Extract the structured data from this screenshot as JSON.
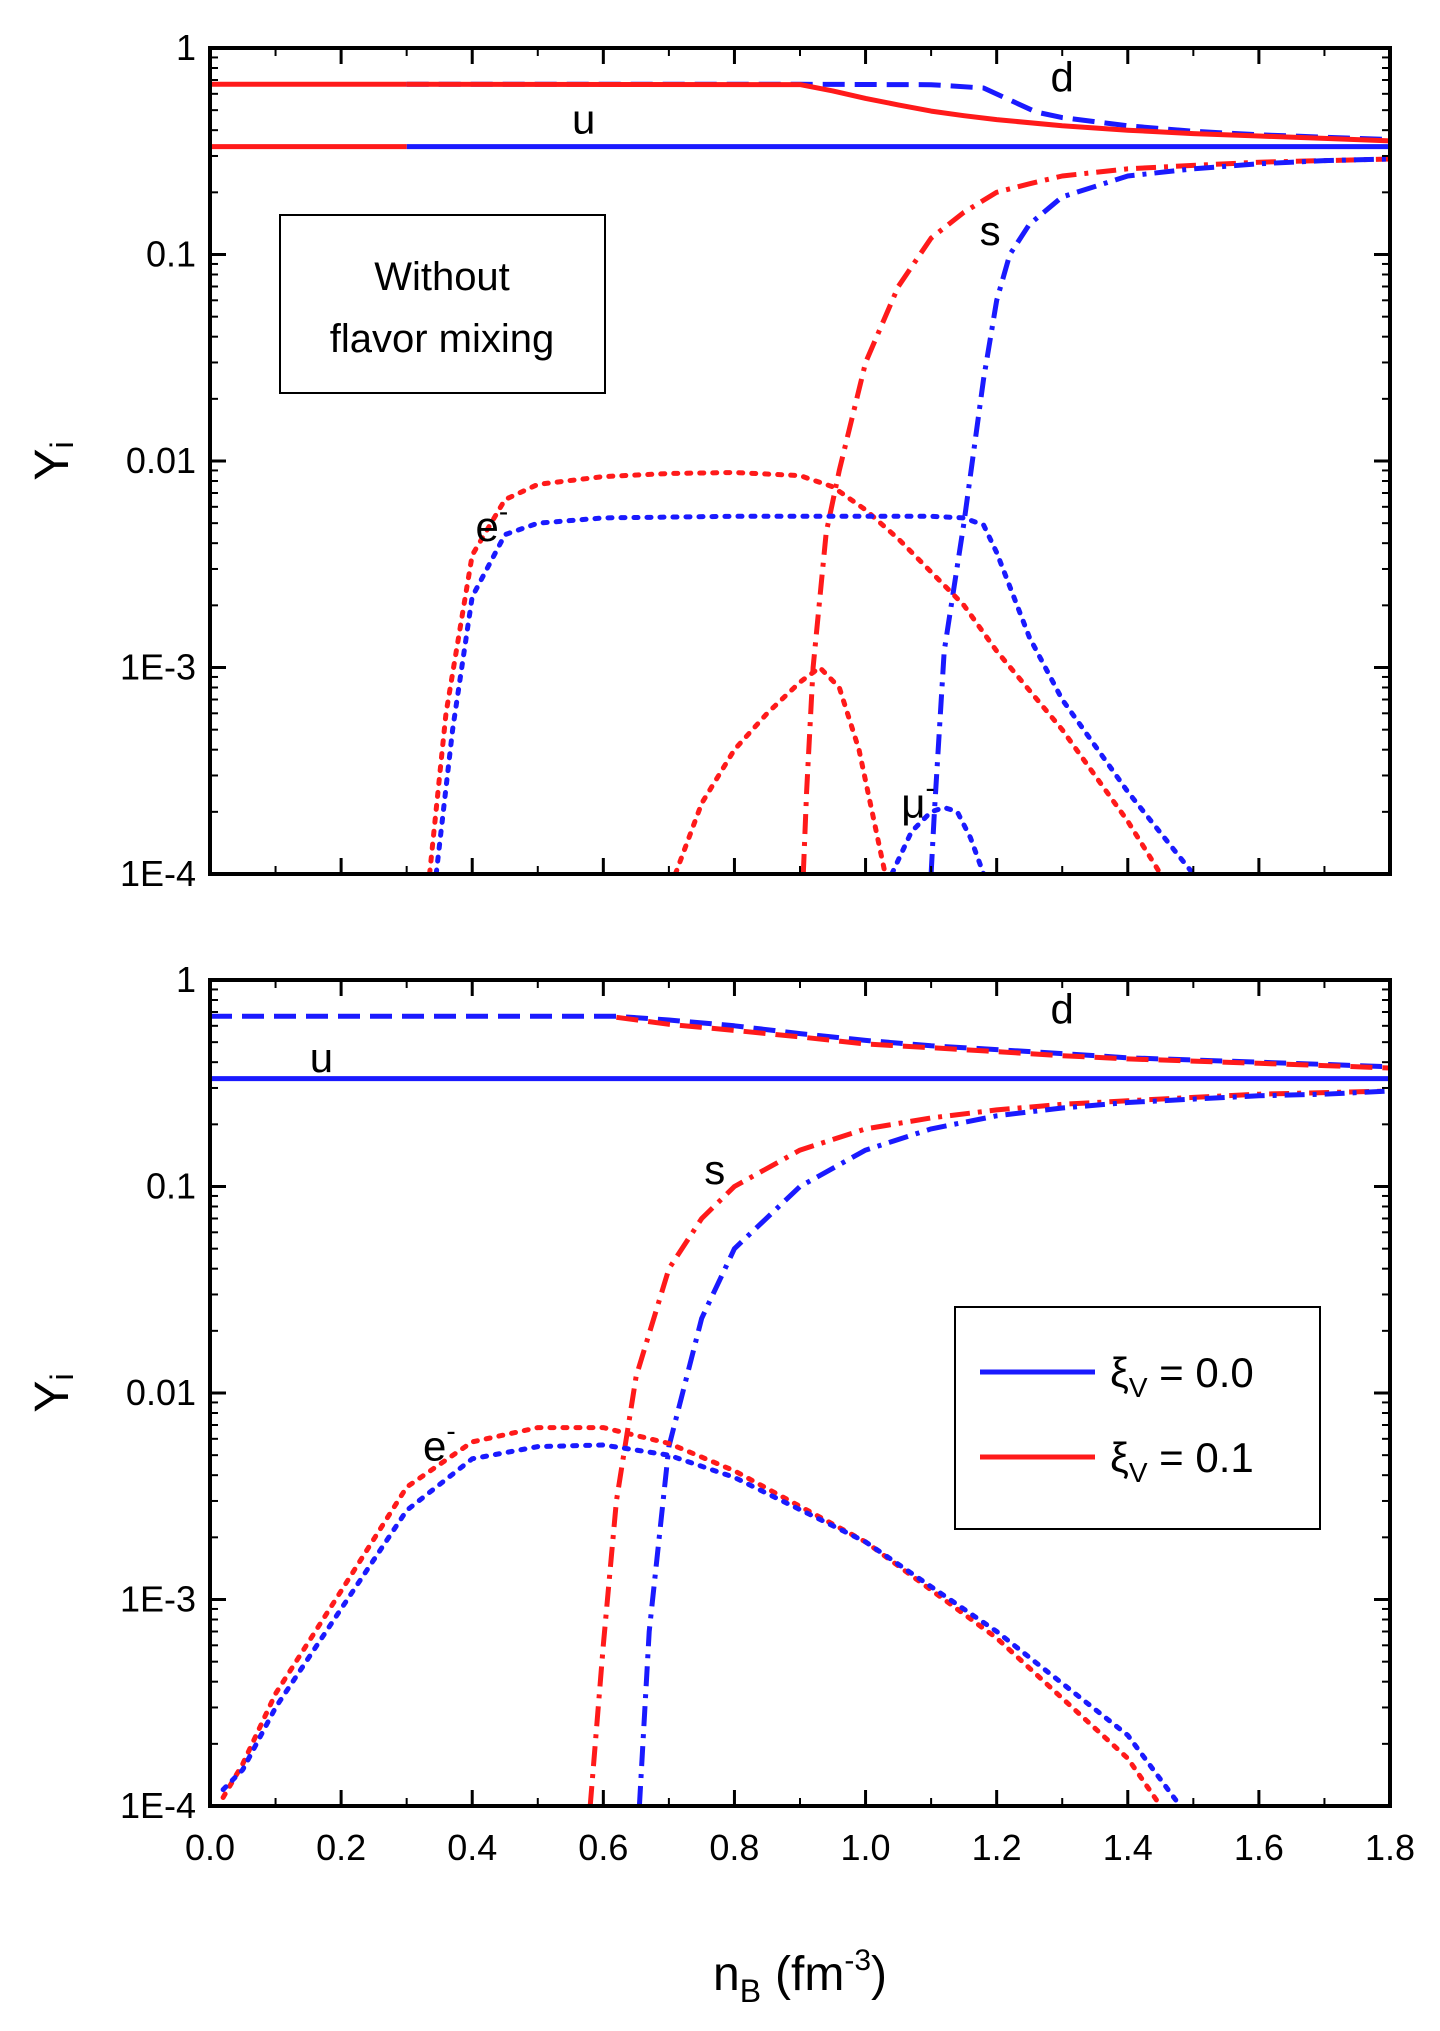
{
  "colors": {
    "xi0": "#1a1aff",
    "xi01": "#ff1a1a",
    "axis": "#000000"
  },
  "chart_data": [
    {
      "type": "line",
      "panel": "top",
      "ylabel": "Y",
      "ylabel_sub": "i",
      "xlim": [
        0.0,
        1.8
      ],
      "ylim": [
        0.0001,
        1
      ],
      "yscale": "log",
      "yticks": [
        "1",
        "0.1",
        "0.01",
        "1E-3",
        "1E-4"
      ],
      "ytick_values": [
        1,
        0.1,
        0.01,
        0.001,
        0.0001
      ],
      "box_lines": [
        "Without",
        "flavor mixing"
      ],
      "annotations": [
        {
          "text": "u",
          "x": 0.57,
          "y": 0.45
        },
        {
          "text": "d",
          "x": 1.3,
          "y": 0.72
        },
        {
          "text": "s",
          "x": 1.19,
          "y": 0.13
        },
        {
          "text": "e",
          "sup": "-",
          "x": 0.43,
          "y": 0.0048
        },
        {
          "text": "μ",
          "sup": "-",
          "x": 1.08,
          "y": 0.00022
        }
      ],
      "series": [
        {
          "name": "u, ξV = 0.0",
          "color": "xi0",
          "style": "solid",
          "x": [
            0.3,
            1.8
          ],
          "y": [
            0.333,
            0.333
          ]
        },
        {
          "name": "u, ξV = 0.1",
          "color": "xi01",
          "style": "solid",
          "x": [
            0.0,
            0.3
          ],
          "y": [
            0.333,
            0.333
          ]
        },
        {
          "name": "d, ξV = 0.1 (solid)",
          "color": "xi01",
          "style": "solid",
          "x": [
            0.0,
            0.3
          ],
          "y": [
            0.667,
            0.667
          ]
        },
        {
          "name": "d, ξV = 0.0",
          "color": "xi0",
          "style": "dash",
          "x": [
            0.3,
            0.9,
            1.1,
            1.18,
            1.22,
            1.26,
            1.3,
            1.4,
            1.5,
            1.6,
            1.7,
            1.8
          ],
          "y": [
            0.667,
            0.667,
            0.664,
            0.64,
            0.56,
            0.49,
            0.46,
            0.42,
            0.395,
            0.38,
            0.37,
            0.36
          ]
        },
        {
          "name": "d, ξV = 0.1",
          "color": "xi01",
          "style": "solid",
          "x": [
            0.3,
            0.9,
            0.95,
            1.0,
            1.05,
            1.1,
            1.15,
            1.2,
            1.3,
            1.4,
            1.5,
            1.6,
            1.7,
            1.8
          ],
          "y": [
            0.667,
            0.665,
            0.62,
            0.57,
            0.53,
            0.495,
            0.47,
            0.45,
            0.42,
            0.4,
            0.385,
            0.375,
            0.365,
            0.355
          ]
        },
        {
          "name": "s, ξV = 0.1",
          "color": "xi01",
          "style": "dashdot",
          "x": [
            0.905,
            0.91,
            0.92,
            0.94,
            0.96,
            1.0,
            1.05,
            1.1,
            1.15,
            1.2,
            1.25,
            1.3,
            1.4,
            1.5,
            1.6,
            1.7,
            1.8
          ],
          "y": [
            0.0001,
            0.00025,
            0.001,
            0.0045,
            0.009,
            0.03,
            0.07,
            0.12,
            0.16,
            0.2,
            0.22,
            0.24,
            0.26,
            0.27,
            0.28,
            0.285,
            0.29
          ]
        },
        {
          "name": "s, ξV = 0.0",
          "color": "xi0",
          "style": "dashdot",
          "x": [
            1.1,
            1.105,
            1.12,
            1.15,
            1.18,
            1.2,
            1.22,
            1.25,
            1.3,
            1.4,
            1.5,
            1.6,
            1.7,
            1.8
          ],
          "y": [
            0.0001,
            0.0002,
            0.0012,
            0.005,
            0.025,
            0.06,
            0.1,
            0.14,
            0.19,
            0.24,
            0.26,
            0.275,
            0.285,
            0.29
          ]
        },
        {
          "name": "e-, ξV = 0.1",
          "color": "xi01",
          "style": "dot",
          "x": [
            0.335,
            0.36,
            0.4,
            0.45,
            0.5,
            0.6,
            0.7,
            0.8,
            0.9,
            0.95,
            1.0,
            1.05,
            1.1,
            1.15,
            1.2,
            1.3,
            1.4,
            1.45
          ],
          "y": [
            0.0001,
            0.0006,
            0.0035,
            0.0065,
            0.0077,
            0.0084,
            0.0087,
            0.0088,
            0.0085,
            0.0075,
            0.0058,
            0.0042,
            0.0029,
            0.002,
            0.0012,
            0.0005,
            0.00018,
            0.0001
          ]
        },
        {
          "name": "e-, ξV = 0.0",
          "color": "xi0",
          "style": "dot",
          "x": [
            0.345,
            0.37,
            0.4,
            0.45,
            0.5,
            0.6,
            0.8,
            1.0,
            1.1,
            1.15,
            1.18,
            1.2,
            1.25,
            1.3,
            1.4,
            1.5
          ],
          "y": [
            0.0001,
            0.0005,
            0.0022,
            0.0044,
            0.005,
            0.0053,
            0.0054,
            0.0054,
            0.0054,
            0.0053,
            0.0049,
            0.0036,
            0.0014,
            0.0007,
            0.00025,
            0.0001
          ]
        },
        {
          "name": "μ-, ξV = 0.1",
          "color": "xi01",
          "style": "dot",
          "x": [
            0.71,
            0.75,
            0.8,
            0.85,
            0.9,
            0.93,
            0.96,
            0.99,
            1.01,
            1.03
          ],
          "y": [
            0.0001,
            0.00022,
            0.0004,
            0.0006,
            0.00085,
            0.001,
            0.0008,
            0.0004,
            0.0002,
            0.0001
          ]
        },
        {
          "name": "μ-, ξV = 0.0",
          "color": "xi0",
          "style": "dot",
          "x": [
            1.04,
            1.07,
            1.1,
            1.12,
            1.14,
            1.16,
            1.18
          ],
          "y": [
            0.0001,
            0.00016,
            0.0002,
            0.00021,
            0.0002,
            0.00015,
            0.0001
          ]
        }
      ]
    },
    {
      "type": "line",
      "panel": "bottom",
      "xlabel": "n",
      "xlabel_sub": "B",
      "xlabel_unit": "(fm",
      "xlabel_unit_sup": "-3",
      "xlabel_unit_close": ")",
      "ylabel": "Y",
      "ylabel_sub": "i",
      "xlim": [
        0.0,
        1.8
      ],
      "ylim": [
        0.0001,
        1
      ],
      "yscale": "log",
      "xticks": [
        "0.0",
        "0.2",
        "0.4",
        "0.6",
        "0.8",
        "1.0",
        "1.2",
        "1.4",
        "1.6",
        "1.8"
      ],
      "xtick_values": [
        0.0,
        0.2,
        0.4,
        0.6,
        0.8,
        1.0,
        1.2,
        1.4,
        1.6,
        1.8
      ],
      "yticks": [
        "1",
        "0.1",
        "0.01",
        "1E-3",
        "1E-4"
      ],
      "ytick_values": [
        1,
        0.1,
        0.01,
        0.001,
        0.0001
      ],
      "legend": {
        "position": "right",
        "entries": [
          {
            "symbol": "ξ",
            "sub": "V",
            "value": " = 0.0",
            "color": "xi0"
          },
          {
            "symbol": "ξ",
            "sub": "V",
            "value": " = 0.1",
            "color": "xi01"
          }
        ]
      },
      "annotations": [
        {
          "text": "u",
          "x": 0.17,
          "y": 0.42
        },
        {
          "text": "d",
          "x": 1.3,
          "y": 0.72
        },
        {
          "text": "s",
          "x": 0.77,
          "y": 0.12
        },
        {
          "text": "e",
          "sup": "-",
          "x": 0.35,
          "y": 0.0055
        }
      ],
      "series": [
        {
          "name": "u",
          "color": "xi0",
          "style": "solid",
          "x": [
            0.0,
            1.8
          ],
          "y": [
            0.333,
            0.333
          ]
        },
        {
          "name": "d, ξV = 0.0",
          "color": "xi0",
          "style": "dash",
          "x": [
            0.0,
            0.62,
            0.7,
            0.8,
            0.9,
            1.0,
            1.1,
            1.2,
            1.3,
            1.4,
            1.5,
            1.6,
            1.7,
            1.8
          ],
          "y": [
            0.667,
            0.667,
            0.64,
            0.6,
            0.55,
            0.51,
            0.48,
            0.46,
            0.44,
            0.42,
            0.41,
            0.4,
            0.39,
            0.38
          ]
        },
        {
          "name": "d, ξV = 0.1",
          "color": "xi01",
          "style": "dash",
          "x": [
            0.62,
            0.7,
            0.8,
            0.9,
            1.0,
            1.1,
            1.2,
            1.3,
            1.4,
            1.5,
            1.6,
            1.7,
            1.8
          ],
          "y": [
            0.66,
            0.61,
            0.57,
            0.53,
            0.49,
            0.47,
            0.45,
            0.43,
            0.415,
            0.405,
            0.395,
            0.385,
            0.375
          ]
        },
        {
          "name": "s, ξV = 0.1",
          "color": "xi01",
          "style": "dashdot",
          "x": [
            0.58,
            0.6,
            0.62,
            0.65,
            0.7,
            0.75,
            0.8,
            0.9,
            1.0,
            1.1,
            1.2,
            1.3,
            1.4,
            1.5,
            1.6,
            1.7,
            1.8
          ],
          "y": [
            0.0001,
            0.0006,
            0.003,
            0.012,
            0.04,
            0.07,
            0.1,
            0.15,
            0.19,
            0.215,
            0.235,
            0.25,
            0.26,
            0.27,
            0.28,
            0.285,
            0.29
          ]
        },
        {
          "name": "s, ξV = 0.0",
          "color": "xi0",
          "style": "dashdot",
          "x": [
            0.655,
            0.67,
            0.7,
            0.75,
            0.8,
            0.9,
            1.0,
            1.1,
            1.2,
            1.3,
            1.4,
            1.5,
            1.6,
            1.7,
            1.8
          ],
          "y": [
            0.0001,
            0.0007,
            0.0055,
            0.023,
            0.05,
            0.1,
            0.15,
            0.19,
            0.22,
            0.24,
            0.255,
            0.265,
            0.275,
            0.28,
            0.29
          ]
        },
        {
          "name": "e-, ξV = 0.1",
          "color": "xi01",
          "style": "dot",
          "x": [
            0.02,
            0.05,
            0.1,
            0.2,
            0.3,
            0.4,
            0.5,
            0.6,
            0.7,
            0.8,
            1.0,
            1.2,
            1.4,
            1.45
          ],
          "y": [
            0.00011,
            0.00016,
            0.00035,
            0.0011,
            0.0035,
            0.0058,
            0.0068,
            0.0068,
            0.0057,
            0.0042,
            0.0019,
            0.00065,
            0.00017,
            0.0001
          ]
        },
        {
          "name": "e-, ξV = 0.0",
          "color": "xi0",
          "style": "dot",
          "x": [
            0.02,
            0.05,
            0.1,
            0.2,
            0.3,
            0.4,
            0.5,
            0.6,
            0.7,
            0.8,
            1.0,
            1.2,
            1.4,
            1.48
          ],
          "y": [
            0.00012,
            0.00015,
            0.0003,
            0.0009,
            0.0027,
            0.0048,
            0.0055,
            0.0056,
            0.005,
            0.0039,
            0.0019,
            0.0007,
            0.00022,
            0.0001
          ]
        }
      ]
    }
  ]
}
